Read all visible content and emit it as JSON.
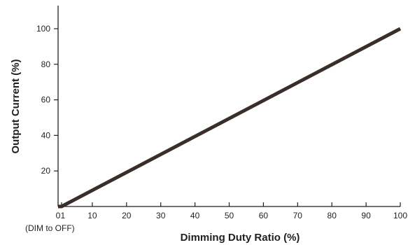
{
  "chart_data": {
    "type": "line",
    "title": "",
    "xlabel": "Dimming Duty Ratio (%)",
    "ylabel": "Output Current (%)",
    "xlim": [
      0,
      100
    ],
    "ylim": [
      0,
      100
    ],
    "x_ticks": [
      0,
      1,
      10,
      20,
      30,
      40,
      50,
      60,
      70,
      80,
      90,
      100
    ],
    "x_tick_labels": [
      "0",
      "1",
      "10",
      "20",
      "30",
      "40",
      "50",
      "60",
      "70",
      "80",
      "90",
      "100"
    ],
    "y_ticks": [
      20,
      40,
      60,
      80,
      100
    ],
    "y_tick_labels": [
      "20",
      "40",
      "60",
      "80",
      "100"
    ],
    "grid": false,
    "annotations": [
      {
        "text": "(DIM to OFF)",
        "x": 0
      }
    ],
    "series": [
      {
        "x": [
          0,
          1,
          100
        ],
        "y": [
          0,
          0,
          100
        ],
        "color": "#3a2e2b"
      }
    ]
  },
  "colors": {
    "axis": "#231f20",
    "line": "#3a2e2b",
    "text": "#231f20"
  }
}
